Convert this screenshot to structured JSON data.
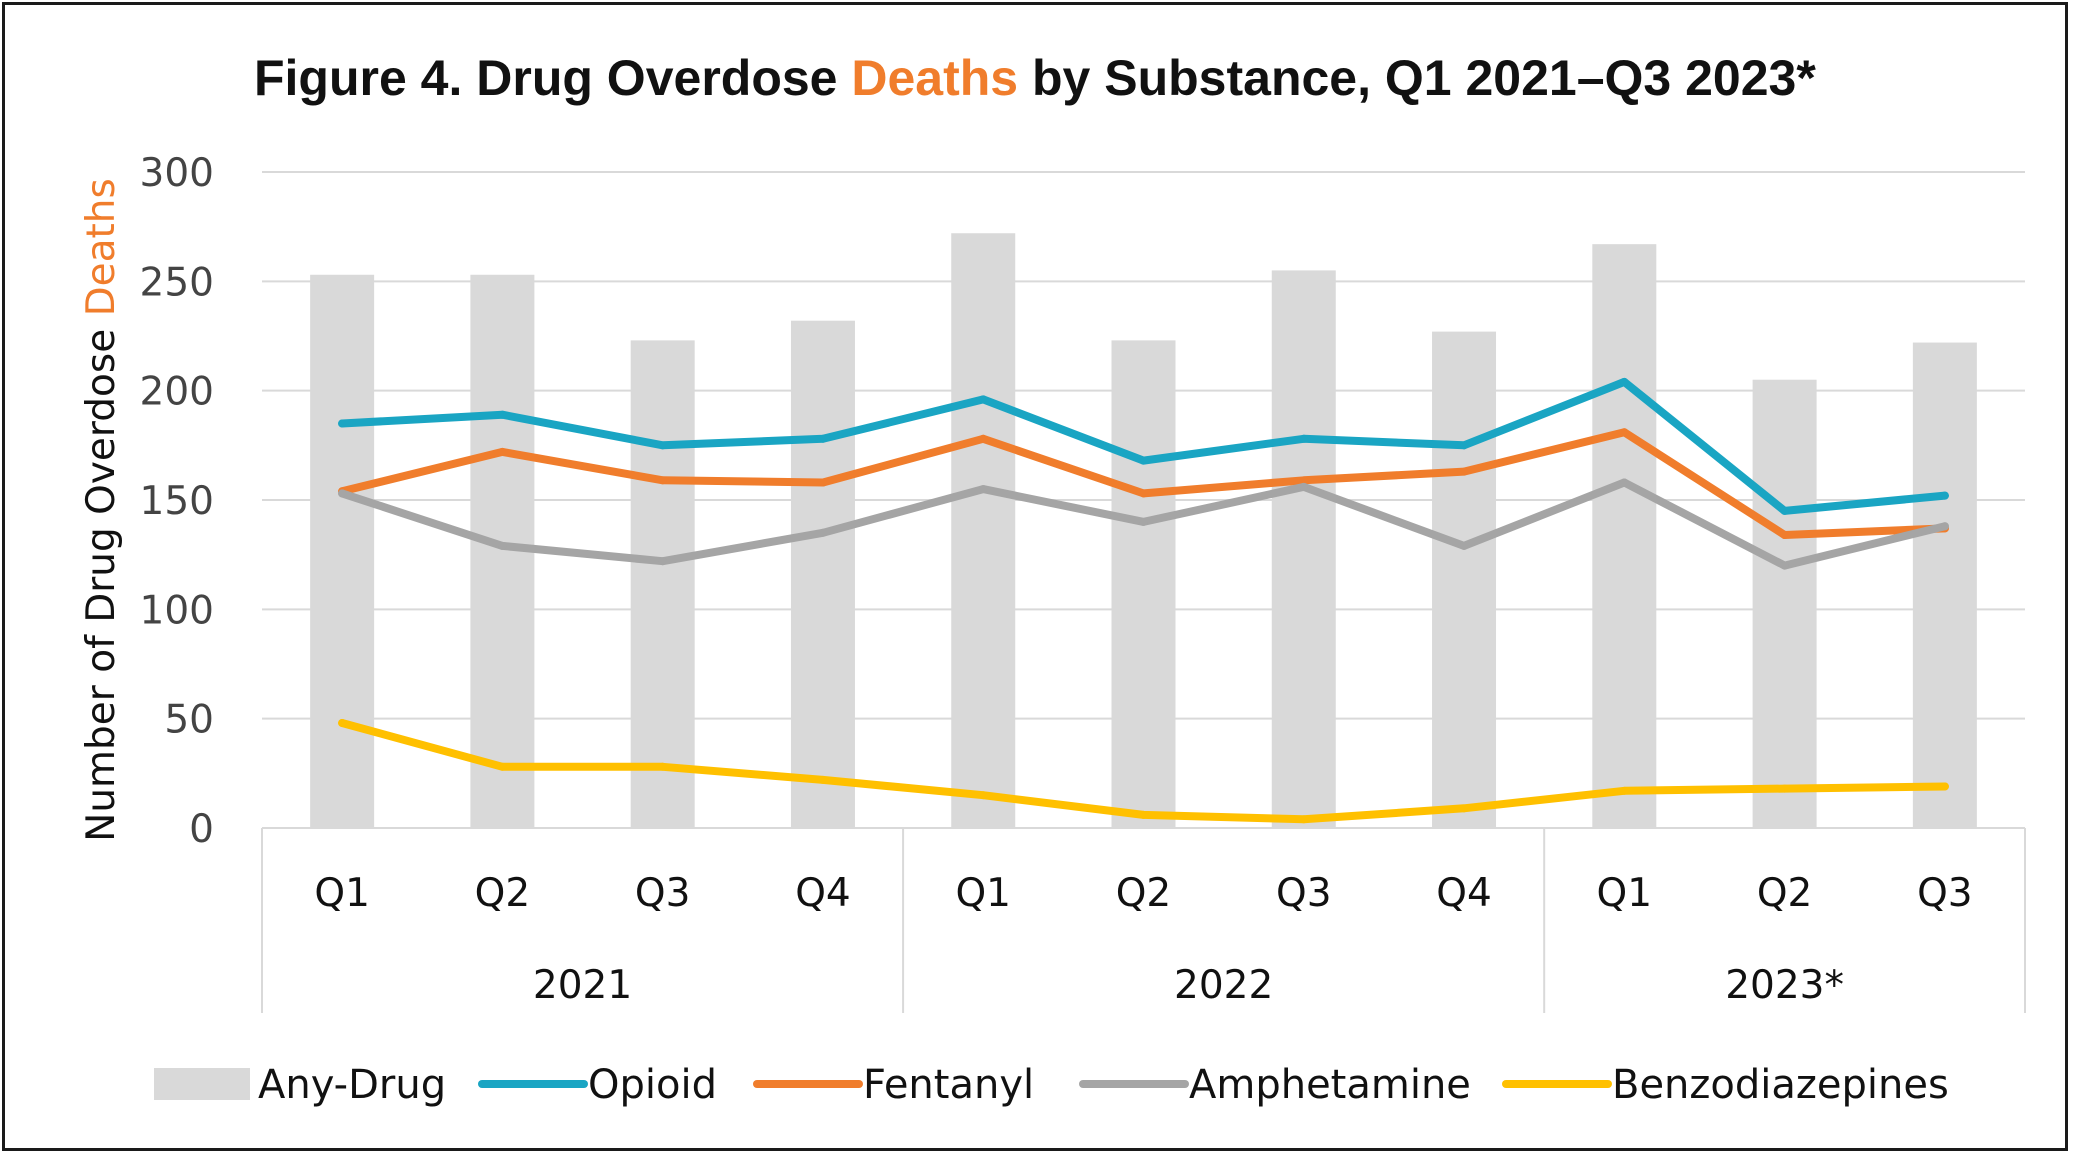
{
  "chart_data": {
    "type": "bar+line",
    "title_parts": [
      "Figure 4. Drug Overdose ",
      "Deaths",
      " by Substance, Q1 2021–Q3 2023*"
    ],
    "ylabel_parts": [
      "Number of Drug Overdose ",
      "Deaths"
    ],
    "xlabel": "",
    "ylim": [
      0,
      300
    ],
    "yticks": [
      "0",
      "50",
      "100",
      "150",
      "200",
      "250",
      "300"
    ],
    "ytick_values": [
      0,
      50,
      100,
      150,
      200,
      250,
      300
    ],
    "grid": true,
    "legend_position": "bottom",
    "categories": [
      "Q1",
      "Q2",
      "Q3",
      "Q4",
      "Q1",
      "Q2",
      "Q3",
      "Q4",
      "Q1",
      "Q2",
      "Q3"
    ],
    "year_groups": [
      {
        "label": "2021",
        "count": 4
      },
      {
        "label": "2022",
        "count": 4
      },
      {
        "label": "2023*",
        "count": 3
      }
    ],
    "bar_series": {
      "name": "Any-Drug",
      "color": "#d9d9d9",
      "values": [
        253,
        253,
        223,
        232,
        272,
        223,
        255,
        227,
        267,
        205,
        222
      ]
    },
    "series": [
      {
        "name": "Opioid",
        "color": "#1aa5c3",
        "values": [
          185,
          189,
          175,
          178,
          196,
          168,
          178,
          175,
          204,
          145,
          152
        ]
      },
      {
        "name": "Fentanyl",
        "color": "#f07d2c",
        "values": [
          154,
          172,
          159,
          158,
          178,
          153,
          159,
          163,
          181,
          134,
          137
        ]
      },
      {
        "name": "Amphetamine",
        "color": "#a5a5a5",
        "values": [
          153,
          129,
          122,
          135,
          155,
          140,
          156,
          129,
          158,
          120,
          138
        ]
      },
      {
        "name": "Benzodiazepines",
        "color": "#ffc000",
        "values": [
          48,
          28,
          28,
          22,
          15,
          6,
          4,
          9,
          17,
          18,
          19
        ]
      }
    ],
    "accent_color": "#f07d2c"
  }
}
